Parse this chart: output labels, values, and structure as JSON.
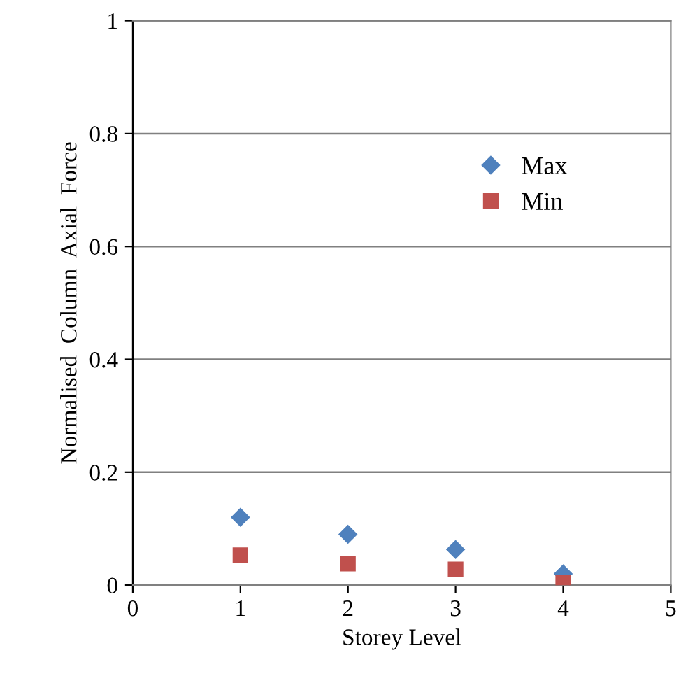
{
  "chart_data": {
    "type": "scatter",
    "xlabel": "Storey Level",
    "ylabel": "Normalised  Column  Axial  Force",
    "x": [
      1,
      2,
      3,
      4
    ],
    "series": [
      {
        "name": "Max",
        "color": "#4f81bd",
        "marker": "diamond",
        "values": [
          0.12,
          0.09,
          0.063,
          0.02
        ]
      },
      {
        "name": "Min",
        "color": "#c0504d",
        "marker": "square",
        "values": [
          0.053,
          0.038,
          0.028,
          0.005
        ]
      }
    ],
    "xlim": [
      0,
      5
    ],
    "xticks": [
      0,
      1,
      2,
      3,
      4,
      5
    ],
    "ylim": [
      0,
      1
    ],
    "yticks": [
      0,
      0.2,
      0.4,
      0.6,
      0.8,
      1
    ],
    "grid": "y",
    "legend": "top right"
  }
}
